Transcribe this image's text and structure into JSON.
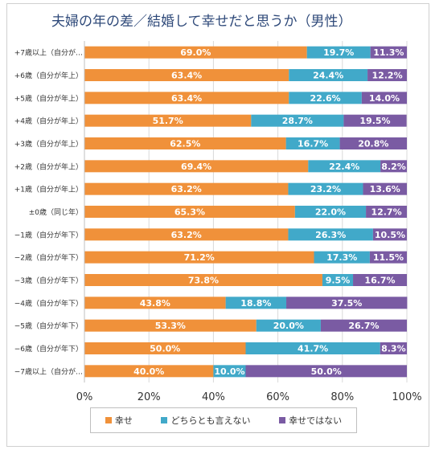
{
  "title": "夫婦の年の差／結婚して幸せだと思うか（男性）",
  "chart_data": {
    "type": "bar",
    "orientation": "horizontal",
    "stacked": true,
    "categories": [
      "+7歳以上（自分が…",
      "+6歳（自分が年上）",
      "+5歳（自分が年上）",
      "+4歳（自分が年上）",
      "+3歳（自分が年上）",
      "+2歳（自分が年上）",
      "+1歳（自分が年上）",
      "±0歳（同じ年）",
      "−1歳（自分が年下）",
      "−2歳（自分が年下）",
      "−3歳（自分が年下）",
      "−4歳（自分が年下）",
      "−5歳（自分が年下）",
      "−6歳（自分が年下）",
      "−7歳以上（自分が…"
    ],
    "series": [
      {
        "name": "幸せ",
        "color": "#f0913a",
        "values": [
          69.0,
          63.4,
          63.4,
          51.7,
          62.5,
          69.4,
          63.2,
          65.3,
          63.2,
          71.2,
          73.8,
          43.8,
          53.3,
          50.0,
          40.0
        ],
        "labels": [
          "69.0%",
          "63.4%",
          "63.4%",
          "51.7%",
          "62.5%",
          "69.4%",
          "63.2%",
          "65.3%",
          "63.2%",
          "71.2%",
          "73.8%",
          "43.8%",
          "53.3%",
          "50.0%",
          "40.0%"
        ]
      },
      {
        "name": "どちらとも言えない",
        "color": "#41a9c9",
        "values": [
          19.7,
          24.4,
          22.6,
          28.7,
          16.7,
          22.4,
          23.2,
          22.0,
          26.3,
          17.3,
          9.5,
          18.8,
          20.0,
          41.7,
          10.0
        ],
        "labels": [
          "19.7%",
          "24.4%",
          "22.6%",
          "28.7%",
          "16.7%",
          "22.4%",
          "23.2%",
          "22.0%",
          "26.3%",
          "17.3%",
          "9.5%",
          "18.8%",
          "20.0%",
          "41.7%",
          "10.0%"
        ]
      },
      {
        "name": "幸せではない",
        "color": "#7a5ba3",
        "values": [
          11.3,
          12.2,
          14.0,
          19.5,
          20.8,
          8.2,
          13.6,
          12.7,
          10.5,
          11.5,
          16.7,
          37.5,
          26.7,
          8.3,
          50.0
        ],
        "labels": [
          "11.3%",
          "12.2%",
          "14.0%",
          "19.5%",
          "20.8%",
          "8.2%",
          "13.6%",
          "12.7%",
          "10.5%",
          "11.5%",
          "16.7%",
          "37.5%",
          "26.7%",
          "8.3%",
          "50.0%"
        ]
      }
    ],
    "x_ticks": [
      "0%",
      "20%",
      "40%",
      "60%",
      "80%",
      "100%"
    ],
    "xlim": [
      0,
      100
    ],
    "grid": true,
    "legend_position": "bottom"
  }
}
